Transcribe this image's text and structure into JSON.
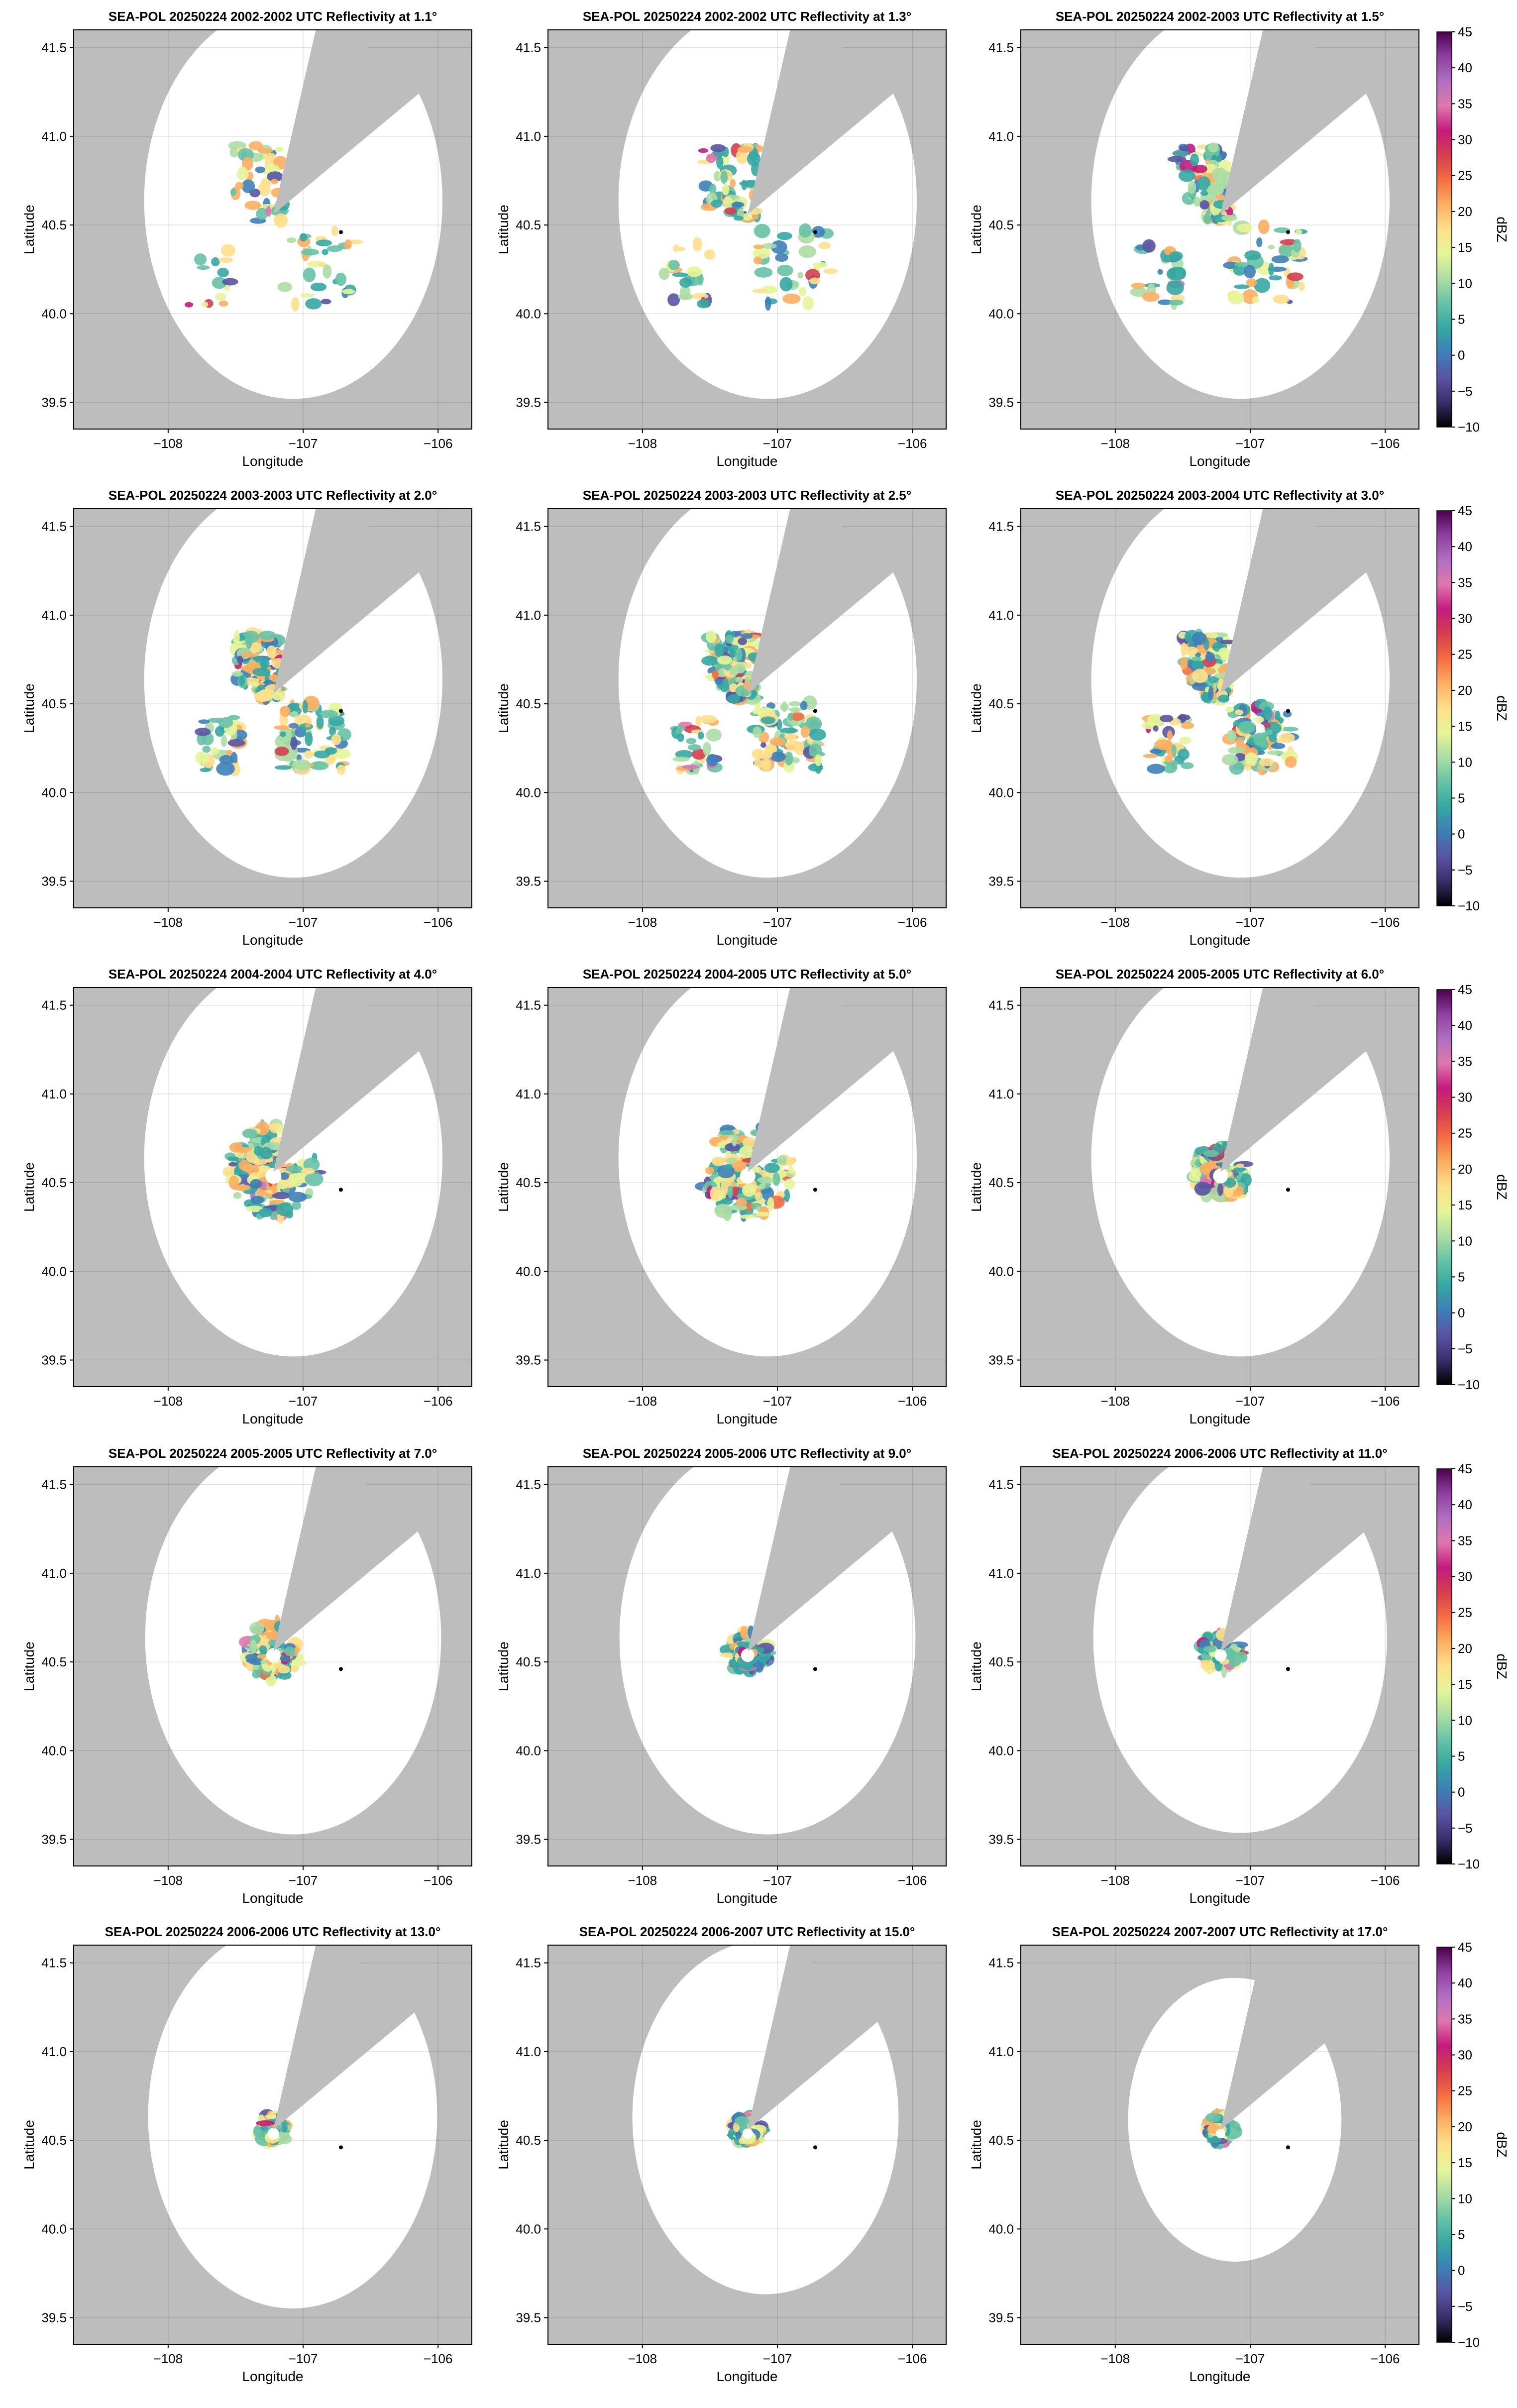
{
  "figure": {
    "panel_titles": [
      "SEA-POL 20250224 2002-2002 UTC Reflectivity at 1.1°",
      "SEA-POL 20250224 2002-2002 UTC Reflectivity at 1.3°",
      "SEA-POL 20250224 2002-2003 UTC Reflectivity at 1.5°",
      "SEA-POL 20250224 2003-2003 UTC Reflectivity at 2.0°",
      "SEA-POL 20250224 2003-2003 UTC Reflectivity at 2.5°",
      "SEA-POL 20250224 2003-2004 UTC Reflectivity at 3.0°",
      "SEA-POL 20250224 2004-2004 UTC Reflectivity at 4.0°",
      "SEA-POL 20250224 2004-2005 UTC Reflectivity at 5.0°",
      "SEA-POL 20250224 2005-2005 UTC Reflectivity at 6.0°",
      "SEA-POL 20250224 2005-2005 UTC Reflectivity at 7.0°",
      "SEA-POL 20250224 2005-2006 UTC Reflectivity at 9.0°",
      "SEA-POL 20250224 2006-2006 UTC Reflectivity at 11.0°",
      "SEA-POL 20250224 2006-2006 UTC Reflectivity at 13.0°",
      "SEA-POL 20250224 2006-2007 UTC Reflectivity at 15.0°",
      "SEA-POL 20250224 2007-2007 UTC Reflectivity at 17.0°"
    ],
    "xlabel": "Longitude",
    "ylabel": "Latitude",
    "colorbar_label": "dBZ",
    "background_color": "#bdbdbd"
  },
  "chart_data": {
    "type": "heatmap",
    "layout": "5 rows x 3 columns",
    "xlim": [
      -108.7,
      -105.75
    ],
    "ylim": [
      39.35,
      41.6
    ],
    "xticks": [
      -108,
      -107,
      -106
    ],
    "xtick_labels": [
      "−108",
      "−107",
      "−106"
    ],
    "yticks": [
      41.5,
      41.0,
      40.5,
      40.0,
      39.5
    ],
    "ytick_labels": [
      "41.5",
      "41.0",
      "40.5",
      "40.0",
      "39.5"
    ],
    "grid": true,
    "radar_site": {
      "lon": -107.22,
      "lat": 40.56
    },
    "marker_point": {
      "lon": -106.72,
      "lat": 40.46
    },
    "colorbar": {
      "range": [
        -10,
        45
      ],
      "ticks": [
        45,
        40,
        35,
        30,
        25,
        20,
        15,
        10,
        5,
        0,
        -5,
        -10
      ],
      "tick_labels": [
        "45",
        "40",
        "35",
        "30",
        "25",
        "20",
        "15",
        "10",
        "5",
        "0",
        "−5",
        "−10"
      ],
      "colormap": [
        "#000000",
        "#3b2e6b",
        "#5954a4",
        "#3d7fb7",
        "#35a7a3",
        "#66c2a5",
        "#abdda4",
        "#e6f598",
        "#fee08b",
        "#fdae61",
        "#f46d43",
        "#d53e4f",
        "#c51b7d",
        "#de77ae",
        "#b16fc2",
        "#8e3fa3",
        "#4d004b"
      ]
    },
    "panels": [
      {
        "elevation_deg": 1.1,
        "coverage_radius_deg": 1.3
      },
      {
        "elevation_deg": 1.3,
        "coverage_radius_deg": 1.3
      },
      {
        "elevation_deg": 1.5,
        "coverage_radius_deg": 1.3
      },
      {
        "elevation_deg": 2.0,
        "coverage_radius_deg": 1.3
      },
      {
        "elevation_deg": 2.5,
        "coverage_radius_deg": 1.3
      },
      {
        "elevation_deg": 3.0,
        "coverage_radius_deg": 1.3
      },
      {
        "elevation_deg": 4.0,
        "coverage_radius_deg": 1.3
      },
      {
        "elevation_deg": 5.0,
        "coverage_radius_deg": 1.3
      },
      {
        "elevation_deg": 6.0,
        "coverage_radius_deg": 1.3
      },
      {
        "elevation_deg": 7.0,
        "coverage_radius_deg": 1.29
      },
      {
        "elevation_deg": 9.0,
        "coverage_radius_deg": 1.29
      },
      {
        "elevation_deg": 11.0,
        "coverage_radius_deg": 1.28
      },
      {
        "elevation_deg": 13.0,
        "coverage_radius_deg": 1.26
      },
      {
        "elevation_deg": 15.0,
        "coverage_radius_deg": 1.16
      },
      {
        "elevation_deg": 17.0,
        "coverage_radius_deg": 0.93
      }
    ]
  }
}
